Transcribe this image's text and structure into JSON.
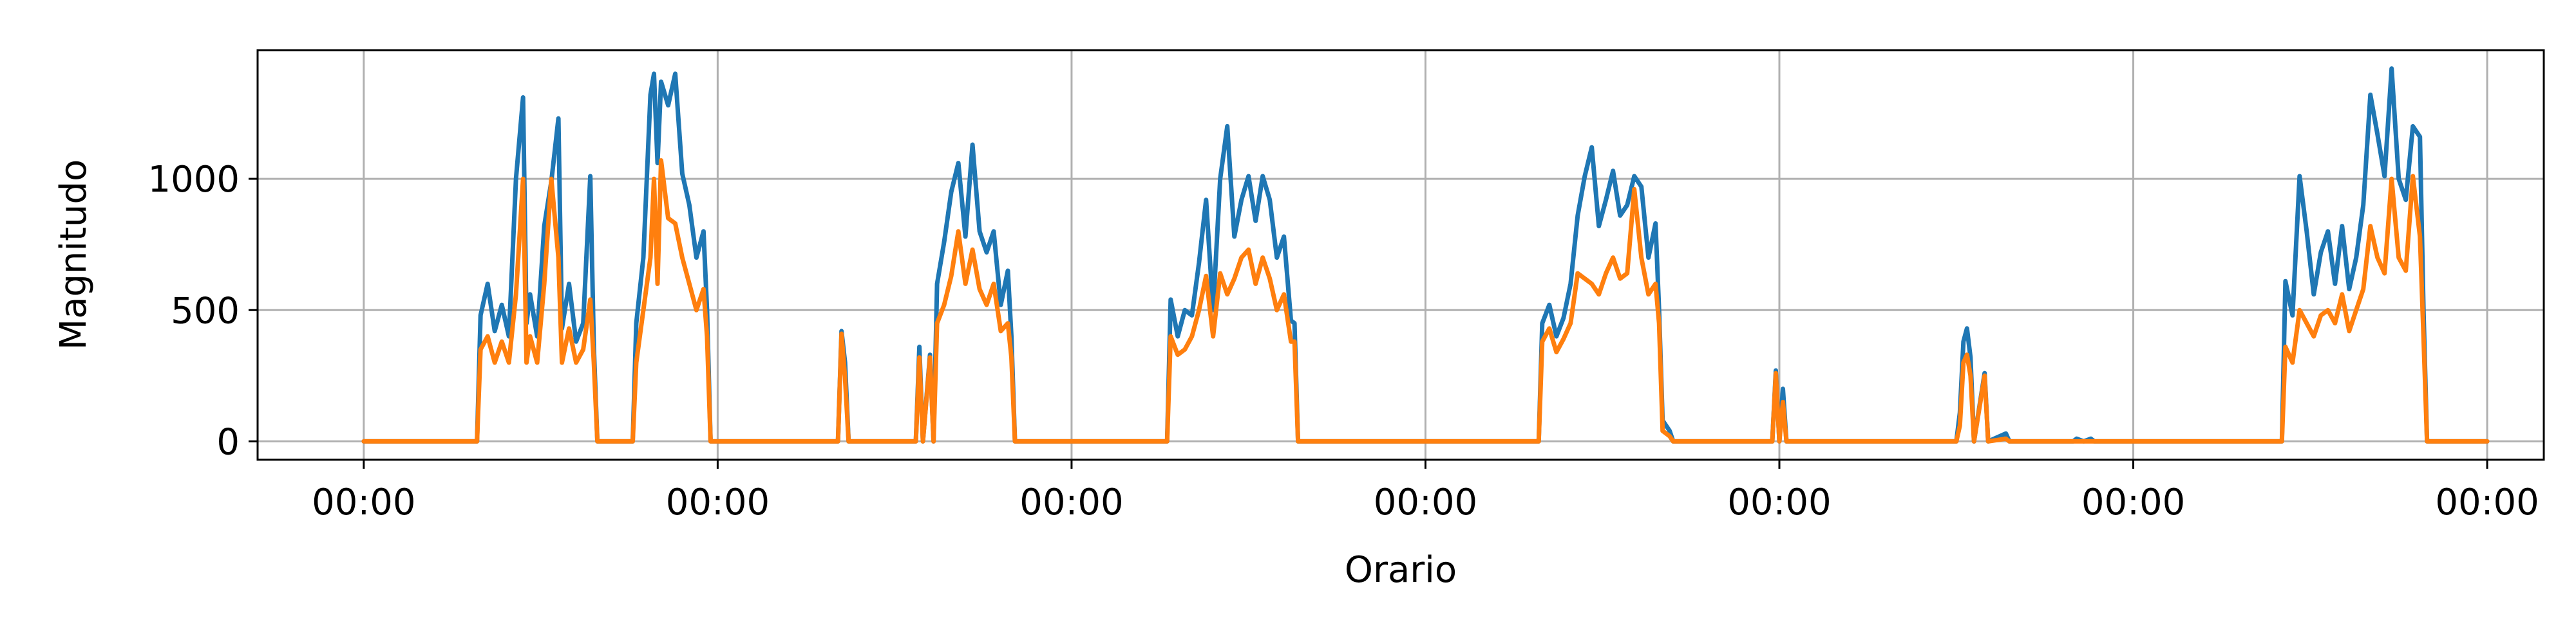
{
  "chart_data": {
    "type": "line",
    "title": "",
    "xlabel": "Orario",
    "ylabel": "Magnitudo",
    "x_tick_labels": [
      "00:00",
      "00:00",
      "00:00",
      "00:00",
      "00:00",
      "00:00",
      "00:00"
    ],
    "x_ticks": [
      0,
      1,
      2,
      3,
      4,
      5,
      6
    ],
    "xlim": [
      -0.3,
      6.16
    ],
    "y_ticks": [
      0,
      500,
      1000
    ],
    "y_tick_labels": [
      "0",
      "500",
      "1000"
    ],
    "ylim": [
      -70,
      1490
    ],
    "grid": true,
    "legend": false,
    "series": [
      {
        "color": "#1f77b4",
        "points": [
          [
            0.0,
            0
          ],
          [
            0.32,
            0
          ],
          [
            0.33,
            480
          ],
          [
            0.35,
            600
          ],
          [
            0.37,
            420
          ],
          [
            0.39,
            520
          ],
          [
            0.41,
            400
          ],
          [
            0.43,
            1000
          ],
          [
            0.45,
            1310
          ],
          [
            0.46,
            450
          ],
          [
            0.47,
            560
          ],
          [
            0.49,
            400
          ],
          [
            0.51,
            820
          ],
          [
            0.53,
            990
          ],
          [
            0.55,
            1230
          ],
          [
            0.56,
            430
          ],
          [
            0.58,
            600
          ],
          [
            0.6,
            380
          ],
          [
            0.62,
            450
          ],
          [
            0.64,
            1010
          ],
          [
            0.65,
            360
          ],
          [
            0.66,
            0
          ],
          [
            0.76,
            0
          ],
          [
            0.77,
            450
          ],
          [
            0.79,
            700
          ],
          [
            0.81,
            1320
          ],
          [
            0.82,
            1400
          ],
          [
            0.83,
            1060
          ],
          [
            0.84,
            1370
          ],
          [
            0.86,
            1280
          ],
          [
            0.88,
            1400
          ],
          [
            0.9,
            1020
          ],
          [
            0.92,
            900
          ],
          [
            0.94,
            700
          ],
          [
            0.96,
            800
          ],
          [
            0.97,
            500
          ],
          [
            0.98,
            0
          ],
          [
            1.34,
            0
          ],
          [
            1.35,
            420
          ],
          [
            1.36,
            300
          ],
          [
            1.37,
            0
          ],
          [
            1.56,
            0
          ],
          [
            1.57,
            360
          ],
          [
            1.58,
            0
          ],
          [
            1.6,
            330
          ],
          [
            1.61,
            0
          ],
          [
            1.62,
            600
          ],
          [
            1.64,
            760
          ],
          [
            1.66,
            950
          ],
          [
            1.68,
            1060
          ],
          [
            1.7,
            780
          ],
          [
            1.72,
            1130
          ],
          [
            1.74,
            800
          ],
          [
            1.76,
            720
          ],
          [
            1.78,
            800
          ],
          [
            1.8,
            520
          ],
          [
            1.82,
            650
          ],
          [
            1.83,
            400
          ],
          [
            1.84,
            0
          ],
          [
            2.27,
            0
          ],
          [
            2.28,
            540
          ],
          [
            2.3,
            400
          ],
          [
            2.32,
            500
          ],
          [
            2.34,
            480
          ],
          [
            2.36,
            680
          ],
          [
            2.38,
            920
          ],
          [
            2.4,
            500
          ],
          [
            2.42,
            1000
          ],
          [
            2.44,
            1200
          ],
          [
            2.46,
            780
          ],
          [
            2.48,
            920
          ],
          [
            2.5,
            1010
          ],
          [
            2.52,
            840
          ],
          [
            2.54,
            1010
          ],
          [
            2.56,
            920
          ],
          [
            2.58,
            700
          ],
          [
            2.6,
            780
          ],
          [
            2.62,
            460
          ],
          [
            2.63,
            450
          ],
          [
            2.64,
            0
          ],
          [
            3.32,
            0
          ],
          [
            3.33,
            450
          ],
          [
            3.35,
            520
          ],
          [
            3.37,
            400
          ],
          [
            3.39,
            470
          ],
          [
            3.41,
            600
          ],
          [
            3.43,
            860
          ],
          [
            3.45,
            1010
          ],
          [
            3.47,
            1120
          ],
          [
            3.49,
            820
          ],
          [
            3.51,
            920
          ],
          [
            3.53,
            1030
          ],
          [
            3.55,
            860
          ],
          [
            3.57,
            900
          ],
          [
            3.59,
            1010
          ],
          [
            3.61,
            970
          ],
          [
            3.63,
            700
          ],
          [
            3.65,
            830
          ],
          [
            3.66,
            500
          ],
          [
            3.67,
            80
          ],
          [
            3.69,
            40
          ],
          [
            3.7,
            0
          ],
          [
            3.98,
            0
          ],
          [
            3.99,
            270
          ],
          [
            4.0,
            0
          ],
          [
            4.01,
            200
          ],
          [
            4.02,
            0
          ],
          [
            4.5,
            0
          ],
          [
            4.51,
            110
          ],
          [
            4.52,
            380
          ],
          [
            4.53,
            430
          ],
          [
            4.54,
            320
          ],
          [
            4.55,
            0
          ],
          [
            4.58,
            260
          ],
          [
            4.59,
            0
          ],
          [
            4.64,
            30
          ],
          [
            4.65,
            0
          ],
          [
            4.83,
            0
          ],
          [
            4.84,
            10
          ],
          [
            4.86,
            0
          ],
          [
            4.88,
            10
          ],
          [
            4.89,
            0
          ],
          [
            5.42,
            0
          ],
          [
            5.43,
            610
          ],
          [
            5.45,
            480
          ],
          [
            5.47,
            1010
          ],
          [
            5.49,
            800
          ],
          [
            5.51,
            560
          ],
          [
            5.53,
            720
          ],
          [
            5.55,
            800
          ],
          [
            5.57,
            600
          ],
          [
            5.59,
            820
          ],
          [
            5.61,
            580
          ],
          [
            5.63,
            700
          ],
          [
            5.65,
            900
          ],
          [
            5.67,
            1320
          ],
          [
            5.69,
            1170
          ],
          [
            5.71,
            1010
          ],
          [
            5.73,
            1420
          ],
          [
            5.75,
            1000
          ],
          [
            5.77,
            920
          ],
          [
            5.79,
            1200
          ],
          [
            5.81,
            1160
          ],
          [
            5.82,
            500
          ],
          [
            5.83,
            0
          ],
          [
            6.0,
            0
          ]
        ]
      },
      {
        "color": "#ff7f0e",
        "points": [
          [
            0.0,
            0
          ],
          [
            0.32,
            0
          ],
          [
            0.33,
            350
          ],
          [
            0.35,
            400
          ],
          [
            0.37,
            300
          ],
          [
            0.39,
            380
          ],
          [
            0.41,
            300
          ],
          [
            0.43,
            560
          ],
          [
            0.45,
            1000
          ],
          [
            0.46,
            300
          ],
          [
            0.47,
            400
          ],
          [
            0.49,
            300
          ],
          [
            0.51,
            600
          ],
          [
            0.53,
            1000
          ],
          [
            0.55,
            700
          ],
          [
            0.56,
            300
          ],
          [
            0.58,
            430
          ],
          [
            0.6,
            300
          ],
          [
            0.62,
            350
          ],
          [
            0.64,
            540
          ],
          [
            0.65,
            300
          ],
          [
            0.66,
            0
          ],
          [
            0.76,
            0
          ],
          [
            0.77,
            300
          ],
          [
            0.79,
            500
          ],
          [
            0.81,
            700
          ],
          [
            0.82,
            1000
          ],
          [
            0.83,
            600
          ],
          [
            0.84,
            1070
          ],
          [
            0.86,
            850
          ],
          [
            0.88,
            830
          ],
          [
            0.9,
            700
          ],
          [
            0.92,
            600
          ],
          [
            0.94,
            500
          ],
          [
            0.96,
            580
          ],
          [
            0.97,
            400
          ],
          [
            0.98,
            0
          ],
          [
            1.34,
            0
          ],
          [
            1.35,
            410
          ],
          [
            1.36,
            240
          ],
          [
            1.37,
            0
          ],
          [
            1.56,
            0
          ],
          [
            1.57,
            320
          ],
          [
            1.58,
            0
          ],
          [
            1.6,
            320
          ],
          [
            1.61,
            0
          ],
          [
            1.62,
            450
          ],
          [
            1.64,
            520
          ],
          [
            1.66,
            630
          ],
          [
            1.68,
            800
          ],
          [
            1.7,
            600
          ],
          [
            1.72,
            730
          ],
          [
            1.74,
            580
          ],
          [
            1.76,
            520
          ],
          [
            1.78,
            600
          ],
          [
            1.8,
            420
          ],
          [
            1.82,
            450
          ],
          [
            1.83,
            320
          ],
          [
            1.84,
            0
          ],
          [
            2.27,
            0
          ],
          [
            2.28,
            400
          ],
          [
            2.3,
            330
          ],
          [
            2.32,
            350
          ],
          [
            2.34,
            400
          ],
          [
            2.36,
            500
          ],
          [
            2.38,
            630
          ],
          [
            2.4,
            400
          ],
          [
            2.42,
            640
          ],
          [
            2.44,
            560
          ],
          [
            2.46,
            620
          ],
          [
            2.48,
            700
          ],
          [
            2.5,
            730
          ],
          [
            2.52,
            600
          ],
          [
            2.54,
            700
          ],
          [
            2.56,
            620
          ],
          [
            2.58,
            500
          ],
          [
            2.6,
            560
          ],
          [
            2.62,
            380
          ],
          [
            2.63,
            380
          ],
          [
            2.64,
            0
          ],
          [
            3.32,
            0
          ],
          [
            3.33,
            380
          ],
          [
            3.35,
            430
          ],
          [
            3.37,
            340
          ],
          [
            3.39,
            390
          ],
          [
            3.41,
            450
          ],
          [
            3.43,
            640
          ],
          [
            3.45,
            620
          ],
          [
            3.47,
            600
          ],
          [
            3.49,
            560
          ],
          [
            3.51,
            640
          ],
          [
            3.53,
            700
          ],
          [
            3.55,
            620
          ],
          [
            3.57,
            640
          ],
          [
            3.59,
            960
          ],
          [
            3.61,
            700
          ],
          [
            3.63,
            560
          ],
          [
            3.65,
            600
          ],
          [
            3.66,
            450
          ],
          [
            3.67,
            40
          ],
          [
            3.69,
            20
          ],
          [
            3.7,
            0
          ],
          [
            3.98,
            0
          ],
          [
            3.99,
            260
          ],
          [
            4.0,
            0
          ],
          [
            4.01,
            150
          ],
          [
            4.02,
            0
          ],
          [
            4.5,
            0
          ],
          [
            4.51,
            60
          ],
          [
            4.52,
            300
          ],
          [
            4.53,
            330
          ],
          [
            4.54,
            250
          ],
          [
            4.55,
            0
          ],
          [
            4.58,
            250
          ],
          [
            4.59,
            0
          ],
          [
            4.64,
            10
          ],
          [
            4.65,
            0
          ],
          [
            5.42,
            0
          ],
          [
            5.43,
            360
          ],
          [
            5.45,
            300
          ],
          [
            5.47,
            500
          ],
          [
            5.49,
            450
          ],
          [
            5.51,
            400
          ],
          [
            5.53,
            480
          ],
          [
            5.55,
            500
          ],
          [
            5.57,
            450
          ],
          [
            5.59,
            560
          ],
          [
            5.61,
            420
          ],
          [
            5.63,
            500
          ],
          [
            5.65,
            580
          ],
          [
            5.67,
            820
          ],
          [
            5.69,
            700
          ],
          [
            5.71,
            640
          ],
          [
            5.73,
            1000
          ],
          [
            5.75,
            700
          ],
          [
            5.77,
            650
          ],
          [
            5.79,
            1010
          ],
          [
            5.81,
            780
          ],
          [
            5.82,
            400
          ],
          [
            5.83,
            0
          ],
          [
            6.0,
            0
          ]
        ]
      }
    ]
  }
}
